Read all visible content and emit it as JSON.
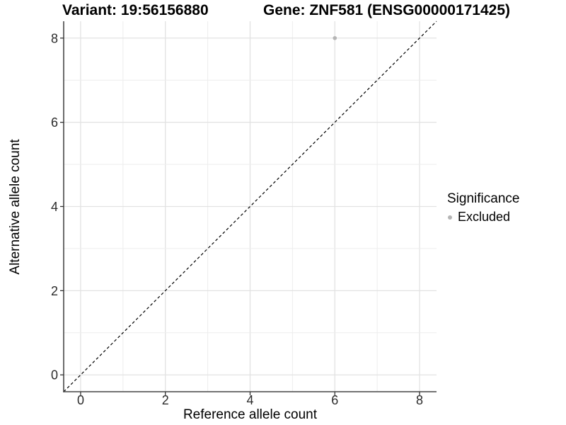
{
  "chart_data": {
    "type": "scatter",
    "title_left": "Variant: 19:56156880",
    "title_right": "Gene: ZNF581 (ENSG00000171425)",
    "xlabel": "Reference allele count",
    "ylabel": "Alternative allele count",
    "xlim": [
      -0.4,
      8.4
    ],
    "ylim": [
      -0.4,
      8.4
    ],
    "x_major_ticks": [
      0,
      2,
      4,
      6,
      8
    ],
    "y_major_ticks": [
      0,
      2,
      4,
      6,
      8
    ],
    "minor_grid_step": 1,
    "grid": "on",
    "background": "#ffffff",
    "colors": {
      "major_grid": "#e2e2e2",
      "minor_grid": "#ededed",
      "axis_line": "#474747",
      "tick_mark": "#333333",
      "tick_label": "#2b2b2b",
      "reference_line": "#000000"
    },
    "series": [
      {
        "name": "Excluded",
        "color": "#b5b5b5",
        "marker": "circle",
        "points": [
          [
            6,
            8
          ]
        ]
      }
    ],
    "reference_line": {
      "kind": "identity y=x",
      "style": "dashed",
      "from": [
        -0.4,
        -0.4
      ],
      "to": [
        8.4,
        8.4
      ]
    },
    "legend": {
      "title": "Significance",
      "position": "right",
      "items": [
        {
          "label": "Excluded",
          "color": "#b5b5b5",
          "marker": "circle"
        }
      ]
    }
  }
}
